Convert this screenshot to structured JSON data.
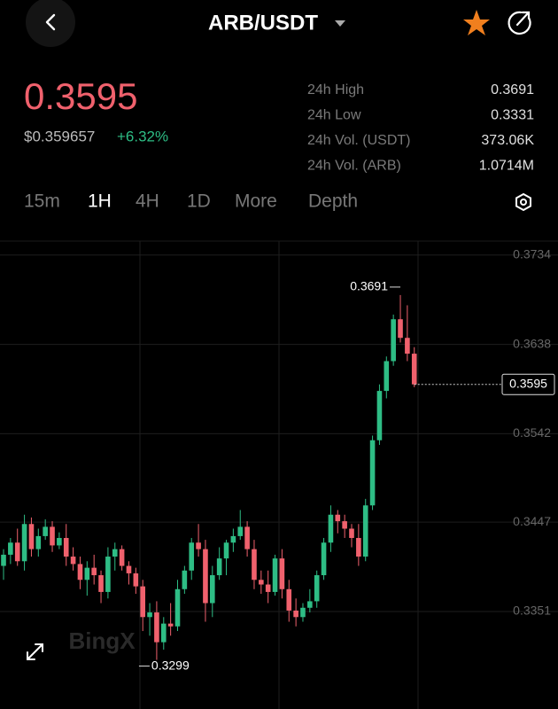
{
  "header": {
    "title": "ARB/USDT"
  },
  "price": {
    "last": "0.3595",
    "usd": "$0.359657",
    "change": "+6.32%"
  },
  "stats": [
    {
      "label": "24h High",
      "value": "0.3691"
    },
    {
      "label": "24h Low",
      "value": "0.3331"
    },
    {
      "label": "24h Vol. (USDT)",
      "value": "373.06K"
    },
    {
      "label": "24h Vol. (ARB)",
      "value": "1.0714M"
    }
  ],
  "tabs": [
    "15m",
    "1H",
    "4H",
    "1D",
    "More",
    "Depth"
  ],
  "chart_data": {
    "type": "candlestick",
    "watermark": "BingX",
    "up_color": "#2ebd85",
    "down_color": "#f0616d",
    "grid": true,
    "ylim": [
      0.3251,
      0.3749
    ],
    "yticks": [
      0.3734,
      0.3638,
      0.3542,
      0.3447,
      0.3351
    ],
    "open": [
      0.34,
      0.3412,
      0.3425,
      0.3405,
      0.3445,
      0.3418,
      0.3432,
      0.3442,
      0.3422,
      0.343,
      0.341,
      0.3402,
      0.3385,
      0.3398,
      0.339,
      0.3372,
      0.341,
      0.3418,
      0.34,
      0.3392,
      0.3378,
      0.3345,
      0.335,
      0.3318,
      0.3338,
      0.3335,
      0.3375,
      0.3395,
      0.3425,
      0.3418,
      0.336,
      0.339,
      0.3408,
      0.3425,
      0.3432,
      0.3442,
      0.3418,
      0.3385,
      0.338,
      0.3372,
      0.3408,
      0.3375,
      0.3352,
      0.3345,
      0.3355,
      0.3362,
      0.339,
      0.3425,
      0.3455,
      0.3448,
      0.344,
      0.343,
      0.341,
      0.3465,
      0.3535,
      0.3588,
      0.362,
      0.3665,
      0.3645,
      0.3628
    ],
    "high": [
      0.3418,
      0.343,
      0.344,
      0.3455,
      0.3452,
      0.344,
      0.345,
      0.3448,
      0.3436,
      0.3445,
      0.342,
      0.341,
      0.3405,
      0.3412,
      0.3395,
      0.342,
      0.3425,
      0.3422,
      0.3405,
      0.3398,
      0.3385,
      0.336,
      0.3362,
      0.3345,
      0.336,
      0.3385,
      0.34,
      0.343,
      0.3445,
      0.3428,
      0.34,
      0.342,
      0.3428,
      0.344,
      0.346,
      0.3448,
      0.3428,
      0.3395,
      0.3395,
      0.3412,
      0.3418,
      0.3385,
      0.3365,
      0.336,
      0.3375,
      0.3395,
      0.343,
      0.3465,
      0.346,
      0.3455,
      0.3445,
      0.3445,
      0.3472,
      0.354,
      0.3595,
      0.3625,
      0.367,
      0.3691,
      0.368,
      0.3635
    ],
    "low": [
      0.3385,
      0.3402,
      0.34,
      0.3395,
      0.341,
      0.341,
      0.3428,
      0.3415,
      0.3418,
      0.34,
      0.3395,
      0.3375,
      0.3368,
      0.338,
      0.336,
      0.3365,
      0.3395,
      0.3395,
      0.338,
      0.337,
      0.333,
      0.3325,
      0.3299,
      0.331,
      0.3325,
      0.333,
      0.337,
      0.3385,
      0.341,
      0.334,
      0.3345,
      0.3385,
      0.339,
      0.3415,
      0.3428,
      0.341,
      0.3375,
      0.337,
      0.336,
      0.3368,
      0.3365,
      0.334,
      0.3335,
      0.334,
      0.335,
      0.3355,
      0.3385,
      0.3415,
      0.3435,
      0.343,
      0.342,
      0.34,
      0.3405,
      0.346,
      0.353,
      0.358,
      0.3615,
      0.364,
      0.362,
      0.3592
    ],
    "close": [
      0.3412,
      0.3425,
      0.3405,
      0.3445,
      0.3418,
      0.3432,
      0.3442,
      0.3422,
      0.343,
      0.341,
      0.3402,
      0.3385,
      0.3398,
      0.339,
      0.3372,
      0.341,
      0.3418,
      0.34,
      0.3392,
      0.3378,
      0.3345,
      0.335,
      0.3318,
      0.3338,
      0.3335,
      0.3375,
      0.3395,
      0.3425,
      0.3418,
      0.336,
      0.339,
      0.3408,
      0.3425,
      0.3432,
      0.3442,
      0.3418,
      0.3385,
      0.338,
      0.3372,
      0.3408,
      0.3375,
      0.3352,
      0.3345,
      0.3355,
      0.3362,
      0.339,
      0.3425,
      0.3455,
      0.3448,
      0.344,
      0.343,
      0.341,
      0.3465,
      0.3535,
      0.3588,
      0.362,
      0.3665,
      0.3645,
      0.3628,
      0.3595
    ]
  }
}
